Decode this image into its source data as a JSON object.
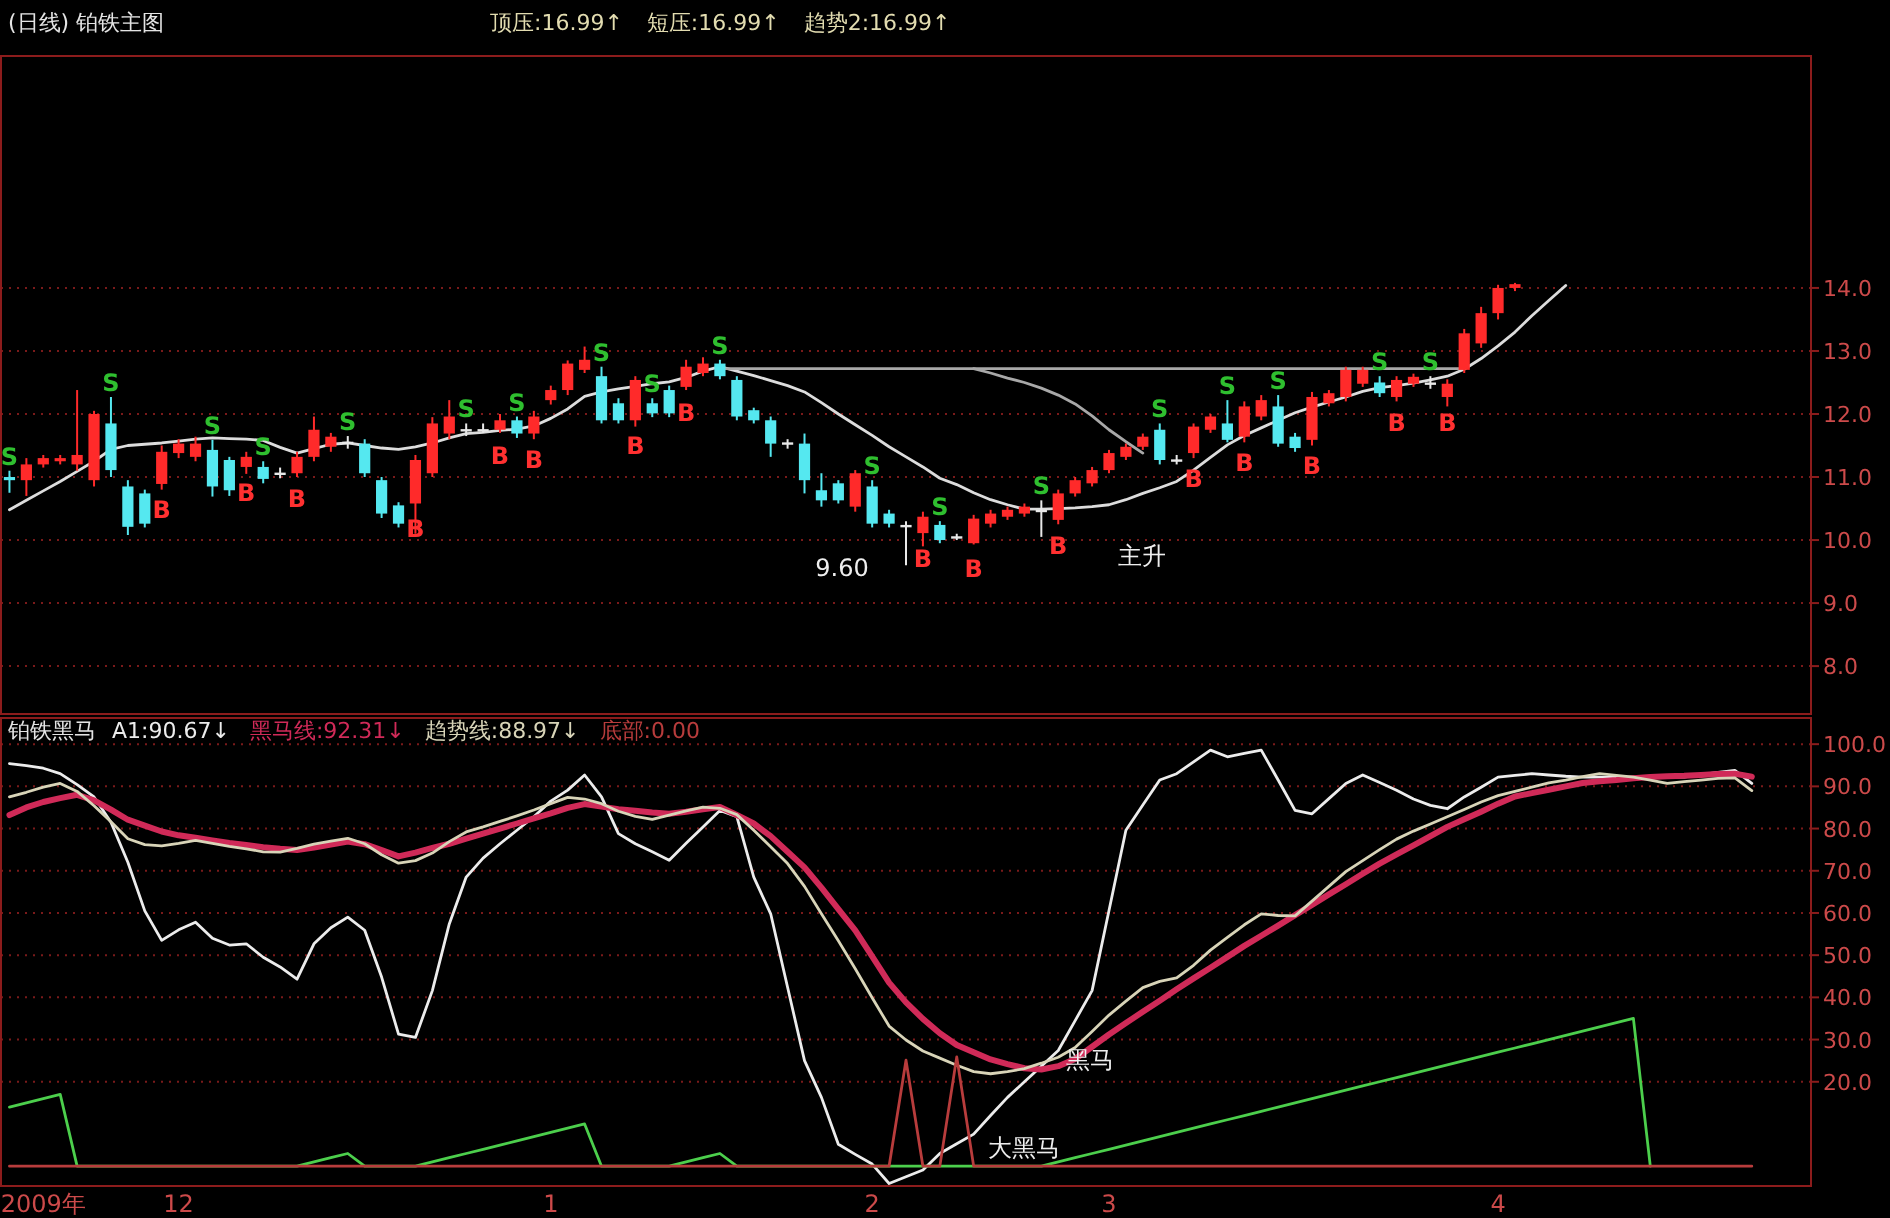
{
  "chart_data": [
    {
      "type": "candlestick",
      "title": "(日线) 铂铁主图",
      "annotations": [
        "顶压:16.99↑",
        "短压:16.99↑",
        "趋势2:16.99↑",
        "9.60",
        "主升"
      ],
      "categories": [
        null,
        null,
        null,
        null,
        null,
        null,
        null,
        null,
        null,
        null,
        null,
        null,
        null,
        null,
        null,
        null,
        null,
        null,
        null,
        null,
        null,
        null,
        null,
        null,
        null,
        null,
        null,
        null,
        null,
        null,
        null,
        null,
        null,
        null,
        null,
        null,
        null,
        null,
        null,
        null,
        null,
        null,
        null,
        null,
        null,
        null,
        null,
        null,
        null,
        null,
        null,
        null,
        null,
        null,
        null,
        null,
        null,
        null,
        null,
        null,
        null,
        null,
        null,
        null,
        null,
        null,
        null,
        null,
        null,
        null,
        null,
        null,
        null,
        null,
        null,
        null,
        null,
        null,
        null,
        null,
        null,
        null,
        null,
        null,
        null,
        null,
        null,
        null,
        null,
        null,
        null,
        null,
        null,
        null,
        null,
        null,
        null,
        null,
        null,
        null,
        null,
        null,
        null,
        null,
        null,
        null,
        null
      ],
      "ohlc": [
        [
          11.0,
          11.1,
          10.75,
          10.95
        ],
        [
          10.95,
          11.3,
          10.7,
          11.2
        ],
        [
          11.2,
          11.35,
          11.15,
          11.3
        ],
        [
          11.25,
          11.35,
          11.2,
          11.3
        ],
        [
          11.2,
          12.38,
          11.1,
          11.35
        ],
        [
          10.95,
          12.05,
          10.85,
          12.0
        ],
        [
          11.85,
          12.27,
          11.0,
          11.11
        ],
        [
          10.85,
          10.95,
          10.08,
          10.21
        ],
        [
          10.74,
          10.8,
          10.2,
          10.26
        ],
        [
          10.89,
          11.5,
          10.8,
          11.4
        ],
        [
          11.38,
          11.6,
          11.3,
          11.53
        ],
        [
          11.32,
          11.64,
          11.25,
          11.53
        ],
        [
          11.43,
          11.59,
          10.69,
          10.85
        ],
        [
          11.27,
          11.32,
          10.7,
          10.79
        ],
        [
          11.16,
          11.4,
          11.05,
          11.32
        ],
        [
          11.16,
          11.25,
          10.9,
          10.97
        ],
        [
          11.07,
          11.15,
          10.98,
          11.05
        ],
        [
          11.06,
          11.4,
          11.0,
          11.32
        ],
        [
          11.32,
          11.96,
          11.25,
          11.75
        ],
        [
          11.48,
          11.7,
          11.4,
          11.64
        ],
        [
          11.56,
          11.65,
          11.45,
          11.54
        ],
        [
          11.53,
          11.6,
          11.0,
          11.06
        ],
        [
          10.95,
          11.0,
          10.35,
          10.42
        ],
        [
          10.55,
          10.6,
          10.2,
          10.26
        ],
        [
          10.58,
          11.35,
          10.1,
          11.27
        ],
        [
          11.06,
          11.95,
          11.0,
          11.85
        ],
        [
          11.69,
          12.22,
          11.6,
          11.96
        ],
        [
          11.76,
          11.85,
          11.65,
          11.74
        ],
        [
          11.76,
          11.85,
          11.7,
          11.74
        ],
        [
          11.75,
          12.0,
          11.7,
          11.9
        ],
        [
          11.9,
          11.96,
          11.62,
          11.69
        ],
        [
          11.69,
          12.05,
          11.6,
          11.96
        ],
        [
          12.22,
          12.45,
          12.15,
          12.38
        ],
        [
          12.38,
          12.85,
          12.3,
          12.8
        ],
        [
          12.7,
          13.07,
          12.65,
          12.86
        ],
        [
          12.6,
          12.75,
          11.85,
          11.9
        ],
        [
          12.17,
          12.25,
          11.85,
          11.9
        ],
        [
          11.9,
          12.6,
          11.8,
          12.54
        ],
        [
          12.17,
          12.25,
          11.95,
          12.01
        ],
        [
          12.38,
          12.45,
          11.95,
          12.01
        ],
        [
          12.43,
          12.86,
          12.38,
          12.75
        ],
        [
          12.65,
          12.9,
          12.6,
          12.8
        ],
        [
          12.8,
          12.86,
          12.55,
          12.6
        ],
        [
          12.54,
          12.6,
          11.9,
          11.96
        ],
        [
          12.06,
          12.1,
          11.85,
          11.9
        ],
        [
          11.9,
          11.96,
          11.32,
          11.53
        ],
        [
          11.55,
          11.6,
          11.45,
          11.53
        ],
        [
          11.53,
          11.69,
          10.74,
          10.95
        ],
        [
          10.79,
          11.06,
          10.53,
          10.63
        ],
        [
          10.9,
          10.95,
          10.58,
          10.63
        ],
        [
          10.53,
          11.11,
          10.45,
          11.06
        ],
        [
          10.85,
          10.95,
          10.2,
          10.26
        ],
        [
          10.42,
          10.48,
          10.2,
          10.26
        ],
        [
          10.24,
          10.3,
          9.6,
          10.22
        ],
        [
          10.11,
          10.45,
          9.9,
          10.37
        ],
        [
          10.24,
          10.3,
          9.95,
          10.0
        ],
        [
          10.06,
          10.1,
          10.0,
          10.04
        ],
        [
          9.95,
          10.4,
          9.93,
          10.34
        ],
        [
          10.26,
          10.48,
          10.2,
          10.42
        ],
        [
          10.37,
          10.53,
          10.32,
          10.48
        ],
        [
          10.42,
          10.58,
          10.37,
          10.53
        ],
        [
          10.48,
          10.63,
          10.05,
          10.46
        ],
        [
          10.32,
          10.8,
          10.25,
          10.74
        ],
        [
          10.74,
          11.0,
          10.69,
          10.95
        ],
        [
          10.9,
          11.16,
          10.85,
          11.11
        ],
        [
          11.11,
          11.43,
          11.06,
          11.38
        ],
        [
          11.32,
          11.53,
          11.27,
          11.48
        ],
        [
          11.48,
          11.69,
          11.43,
          11.64
        ],
        [
          11.75,
          11.85,
          11.2,
          11.27
        ],
        [
          11.28,
          11.35,
          11.2,
          11.26
        ],
        [
          11.38,
          11.85,
          11.3,
          11.8
        ],
        [
          11.75,
          12.0,
          11.7,
          11.96
        ],
        [
          11.85,
          12.22,
          11.55,
          11.59
        ],
        [
          11.64,
          12.2,
          11.55,
          12.12
        ],
        [
          11.96,
          12.3,
          11.9,
          12.22
        ],
        [
          12.12,
          12.3,
          11.48,
          11.53
        ],
        [
          11.64,
          11.7,
          11.4,
          11.46
        ],
        [
          11.59,
          12.35,
          11.5,
          12.27
        ],
        [
          12.17,
          12.38,
          12.12,
          12.33
        ],
        [
          12.27,
          12.75,
          12.2,
          12.7
        ],
        [
          12.48,
          12.75,
          12.43,
          12.7
        ],
        [
          12.5,
          12.6,
          12.27,
          12.33
        ],
        [
          12.27,
          12.6,
          12.2,
          12.54
        ],
        [
          12.48,
          12.64,
          12.43,
          12.59
        ],
        [
          12.5,
          12.6,
          12.4,
          12.48
        ],
        [
          12.27,
          12.55,
          12.12,
          12.48
        ],
        [
          12.7,
          13.35,
          12.65,
          13.28
        ],
        [
          13.12,
          13.7,
          13.05,
          13.6
        ],
        [
          13.6,
          14.05,
          13.5,
          14.0
        ],
        [
          14.0,
          14.08,
          13.95,
          14.06
        ],
        null,
        null,
        null,
        null,
        null,
        null,
        null,
        null,
        null,
        null,
        null,
        null,
        null,
        null,
        null,
        null,
        null
      ],
      "colors": [
        "#55e8f0",
        "#ff2a2a",
        "#ff2a2a",
        "#ff2a2a",
        "#ff2a2a",
        "#ff2a2a",
        "#55e8f0",
        "#55e8f0",
        "#55e8f0",
        "#ff2a2a",
        "#ff2a2a",
        "#ff2a2a",
        "#55e8f0",
        "#55e8f0",
        "#ff2a2a",
        "#55e8f0",
        "#e8e8e8",
        "#ff2a2a",
        "#ff2a2a",
        "#ff2a2a",
        "#e8e8e8",
        "#55e8f0",
        "#55e8f0",
        "#55e8f0",
        "#ff2a2a",
        "#ff2a2a",
        "#ff2a2a",
        "#e8e8e8",
        "#e8e8e8",
        "#ff2a2a",
        "#55e8f0",
        "#ff2a2a",
        "#ff2a2a",
        "#ff2a2a",
        "#ff2a2a",
        "#55e8f0",
        "#55e8f0",
        "#ff2a2a",
        "#55e8f0",
        "#55e8f0",
        "#ff2a2a",
        "#ff2a2a",
        "#55e8f0",
        "#55e8f0",
        "#55e8f0",
        "#55e8f0",
        "#e8e8e8",
        "#55e8f0",
        "#55e8f0",
        "#55e8f0",
        "#ff2a2a",
        "#55e8f0",
        "#55e8f0",
        "#e8e8e8",
        "#ff2a2a",
        "#55e8f0",
        "#e8e8e8",
        "#ff2a2a",
        "#ff2a2a",
        "#ff2a2a",
        "#ff2a2a",
        "#e8e8e8",
        "#ff2a2a",
        "#ff2a2a",
        "#ff2a2a",
        "#ff2a2a",
        "#ff2a2a",
        "#ff2a2a",
        "#55e8f0",
        "#e8e8e8",
        "#ff2a2a",
        "#ff2a2a",
        "#55e8f0",
        "#ff2a2a",
        "#ff2a2a",
        "#55e8f0",
        "#55e8f0",
        "#ff2a2a",
        "#ff2a2a",
        "#ff2a2a",
        "#ff2a2a",
        "#55e8f0",
        "#ff2a2a",
        "#ff2a2a",
        "#e8e8e8",
        "#ff2a2a",
        "#ff2a2a",
        "#ff2a2a",
        "#ff2a2a",
        "#ff2a2a",
        null,
        null,
        null,
        null,
        null,
        null,
        null,
        null,
        null,
        null,
        null,
        null,
        null,
        null,
        null,
        null,
        null
      ],
      "value_labels": [
        "S",
        null,
        null,
        null,
        null,
        null,
        "S",
        null,
        null,
        "B",
        null,
        null,
        "S",
        null,
        "B",
        "S",
        null,
        "B",
        null,
        null,
        "S",
        null,
        null,
        null,
        "B",
        null,
        null,
        "S",
        null,
        "B",
        "S",
        "B",
        null,
        null,
        null,
        "S",
        null,
        "B",
        "S",
        null,
        "B",
        null,
        "S",
        null,
        null,
        null,
        null,
        null,
        null,
        null,
        null,
        "S",
        null,
        null,
        "B",
        "S",
        null,
        "B",
        null,
        null,
        null,
        "S",
        "B",
        null,
        null,
        null,
        null,
        null,
        "S",
        null,
        "B",
        null,
        "S",
        "B",
        null,
        "S",
        null,
        "B",
        null,
        null,
        null,
        "S",
        "B",
        null,
        "S",
        "B",
        null,
        null,
        null,
        null,
        null,
        null,
        null,
        null,
        null,
        null,
        null,
        null,
        null,
        null,
        null,
        null,
        null,
        null,
        null,
        null,
        null
      ],
      "series": [
        {
          "type": "line",
          "color": "#dcdcdc",
          "values": [
            10.48,
            10.63,
            10.78,
            10.93,
            11.09,
            11.25,
            11.44,
            11.5,
            11.52,
            11.54,
            11.57,
            11.6,
            11.62,
            11.61,
            11.6,
            11.58,
            11.47,
            11.38,
            11.45,
            11.52,
            11.54,
            11.5,
            11.46,
            11.44,
            11.48,
            11.54,
            11.62,
            11.69,
            11.71,
            11.74,
            11.76,
            11.81,
            11.93,
            12.08,
            12.28,
            12.35,
            12.4,
            12.44,
            12.48,
            12.51,
            12.58,
            12.68,
            12.75,
            12.68,
            12.61,
            12.53,
            12.45,
            12.35,
            12.18,
            12.0,
            11.83,
            11.66,
            11.48,
            11.32,
            11.16,
            10.98,
            10.88,
            10.75,
            10.64,
            10.56,
            10.49,
            10.49,
            10.5,
            10.51,
            10.53,
            10.56,
            10.64,
            10.74,
            10.83,
            10.93,
            11.11,
            11.31,
            11.51,
            11.66,
            11.78,
            11.9,
            12.02,
            12.11,
            12.19,
            12.27,
            12.36,
            12.42,
            12.45,
            12.49,
            12.54,
            12.6,
            12.71,
            12.88,
            13.08,
            13.3,
            13.56,
            13.8,
            14.04,
            null,
            null,
            null,
            null,
            null,
            null,
            null,
            null,
            null,
            null,
            null,
            null,
            null,
            null
          ]
        },
        {
          "type": "line",
          "color": "#a8a8a8",
          "values": [
            null,
            null,
            null,
            null,
            null,
            null,
            null,
            null,
            null,
            null,
            null,
            null,
            null,
            null,
            null,
            null,
            null,
            null,
            null,
            null,
            null,
            null,
            null,
            null,
            null,
            null,
            null,
            null,
            null,
            null,
            null,
            null,
            null,
            null,
            null,
            null,
            null,
            null,
            null,
            null,
            null,
            null,
            12.72,
            12.72,
            12.72,
            12.72,
            12.72,
            12.72,
            12.72,
            12.72,
            12.72,
            12.72,
            12.72,
            12.72,
            12.72,
            12.72,
            12.72,
            12.72,
            12.72,
            12.72,
            12.72,
            12.72,
            12.72,
            12.72,
            12.72,
            12.72,
            12.72,
            12.72,
            12.72,
            12.72,
            12.72,
            12.72,
            12.72,
            12.72,
            12.72,
            12.72,
            12.72,
            12.72,
            12.72,
            12.72,
            12.72,
            12.72,
            12.72,
            12.72,
            12.72,
            12.72,
            12.72,
            null,
            null,
            null,
            null,
            null,
            null,
            null,
            null,
            null,
            null,
            null,
            null,
            null,
            null,
            null,
            null,
            null,
            null,
            null,
            null
          ]
        },
        {
          "type": "line",
          "color": "#a8a8a8",
          "values": [
            null,
            null,
            null,
            null,
            null,
            null,
            null,
            null,
            null,
            null,
            null,
            null,
            null,
            null,
            null,
            null,
            null,
            null,
            null,
            null,
            null,
            null,
            null,
            null,
            null,
            null,
            null,
            null,
            null,
            null,
            null,
            null,
            null,
            null,
            null,
            null,
            null,
            null,
            null,
            null,
            null,
            null,
            null,
            null,
            null,
            null,
            null,
            null,
            null,
            null,
            null,
            null,
            null,
            null,
            null,
            null,
            null,
            12.72,
            12.65,
            12.57,
            12.5,
            12.41,
            12.3,
            12.16,
            11.97,
            11.75,
            11.56,
            11.38,
            null,
            null,
            null,
            null,
            null,
            null,
            null,
            null,
            null,
            null,
            null,
            null,
            null,
            null,
            null,
            null,
            null,
            null,
            null,
            null,
            null,
            null,
            null,
            null,
            null,
            null,
            null,
            null,
            null,
            null,
            null,
            null,
            null,
            null,
            null,
            null,
            null,
            null,
            null
          ]
        }
      ],
      "ylim": [
        7.24,
        17.68
      ],
      "yticks": [
        {
          "value": 8,
          "label": "8.0"
        },
        {
          "value": 9,
          "label": "9.0"
        },
        {
          "value": 10,
          "label": "10.0"
        },
        {
          "value": 11,
          "label": "11.0"
        },
        {
          "value": 12,
          "label": "12.0"
        },
        {
          "value": 13,
          "label": "13.0"
        },
        {
          "value": 14,
          "label": "14.0"
        }
      ],
      "grid": "y"
    },
    {
      "type": "line",
      "title": "铂铁黑马",
      "legend": "top left",
      "annotations": [
        "黑马",
        "大黑马"
      ],
      "categories": [
        null,
        null,
        "2009年",
        null,
        null,
        null,
        null,
        null,
        null,
        null,
        "12",
        null,
        null,
        null,
        null,
        null,
        null,
        null,
        null,
        null,
        null,
        null,
        null,
        null,
        null,
        null,
        null,
        null,
        null,
        null,
        null,
        null,
        "1",
        null,
        null,
        null,
        null,
        null,
        null,
        null,
        null,
        null,
        null,
        null,
        null,
        null,
        null,
        null,
        null,
        null,
        null,
        "2",
        null,
        null,
        null,
        null,
        null,
        null,
        null,
        null,
        null,
        null,
        null,
        null,
        null,
        "3",
        null,
        null,
        null,
        null,
        null,
        null,
        null,
        null,
        null,
        null,
        null,
        null,
        null,
        null,
        null,
        null,
        null,
        null,
        null,
        null,
        null,
        null,
        "4",
        null,
        null,
        null,
        null,
        null,
        null,
        null,
        null,
        null,
        null,
        null,
        null,
        null,
        null,
        null,
        null,
        null,
        null
      ],
      "series": [
        {
          "name": "A1:90.67↓",
          "color": "#ececec",
          "values": [
            95.4,
            94.9,
            94.3,
            93.0,
            90.4,
            87.5,
            81.5,
            72.0,
            60.5,
            53.5,
            56.0,
            57.8,
            54.0,
            52.4,
            52.7,
            49.5,
            47.2,
            44.3,
            52.7,
            56.5,
            59.0,
            55.9,
            44.8,
            31.3,
            30.5,
            41.6,
            57.4,
            68.5,
            73.0,
            76.4,
            79.6,
            82.8,
            86.5,
            89.1,
            92.7,
            87.5,
            78.8,
            76.4,
            74.5,
            72.5,
            76.5,
            80.4,
            84.3,
            82.8,
            68.5,
            59.8,
            42.4,
            25.0,
            16.3,
            5.2,
            2.8,
            0.5,
            -4.1,
            -2.5,
            -0.9,
            3.0,
            5.3,
            7.6,
            12.0,
            16.3,
            20.0,
            23.7,
            27.4,
            34.5,
            41.6,
            60.6,
            79.6,
            85.6,
            91.5,
            93.0,
            95.8,
            98.6,
            97.0,
            97.8,
            98.6,
            91.5,
            84.3,
            83.5,
            87.1,
            90.7,
            92.7,
            90.9,
            89.1,
            87.0,
            85.5,
            84.7,
            87.5,
            89.8,
            92.2,
            92.6,
            93.0,
            92.7,
            92.4,
            92.2,
            92.2,
            92.2,
            92.2,
            92.2,
            92.2,
            92.2,
            92.8,
            93.3,
            93.8,
            90.7,
            null,
            null,
            null
          ]
        },
        {
          "name": "黑马线:92.31↓",
          "color": "#d02a58",
          "values": [
            83.2,
            85.0,
            86.3,
            87.2,
            88.0,
            86.7,
            84.5,
            82.1,
            80.7,
            79.3,
            78.4,
            77.8,
            77.2,
            76.6,
            76.1,
            75.6,
            75.2,
            74.9,
            75.5,
            76.2,
            76.9,
            76.3,
            74.9,
            73.4,
            74.3,
            75.4,
            76.4,
            77.6,
            78.8,
            80.0,
            81.2,
            82.4,
            83.6,
            84.9,
            85.8,
            85.2,
            84.6,
            84.2,
            83.8,
            83.5,
            84.0,
            84.6,
            85.1,
            83.2,
            81.2,
            78.2,
            74.5,
            70.8,
            66.0,
            60.9,
            55.9,
            49.7,
            43.5,
            38.8,
            34.9,
            31.5,
            28.7,
            27.0,
            25.3,
            24.2,
            23.2,
            22.9,
            23.7,
            25.4,
            28.3,
            31.2,
            33.9,
            36.6,
            39.2,
            41.9,
            44.5,
            47.0,
            49.6,
            52.2,
            54.6,
            57.0,
            59.5,
            61.9,
            64.4,
            66.8,
            69.3,
            71.7,
            73.9,
            76.0,
            78.2,
            80.4,
            82.2,
            84.0,
            85.9,
            87.6,
            88.4,
            89.2,
            90.0,
            90.8,
            91.2,
            91.5,
            91.9,
            92.2,
            92.4,
            92.5,
            92.7,
            92.9,
            93.0,
            92.3,
            null,
            null,
            null
          ]
        },
        {
          "name": "趋势线:88.97↓",
          "color": "#d8d4b8",
          "values": [
            87.5,
            88.6,
            89.8,
            90.7,
            88.8,
            85.4,
            81.6,
            77.6,
            76.2,
            75.9,
            76.5,
            77.2,
            76.5,
            75.8,
            75.2,
            74.5,
            74.4,
            75.3,
            76.3,
            77.0,
            77.7,
            76.4,
            73.8,
            71.8,
            72.4,
            74.2,
            76.9,
            79.2,
            80.4,
            81.7,
            83.0,
            84.4,
            85.9,
            87.4,
            87.0,
            85.9,
            84.1,
            82.9,
            82.2,
            83.2,
            84.2,
            85.1,
            84.8,
            83.3,
            79.6,
            75.7,
            71.7,
            66.3,
            59.8,
            53.4,
            46.8,
            39.9,
            33.2,
            29.9,
            27.3,
            25.6,
            23.9,
            22.4,
            21.9,
            22.4,
            23.1,
            24.4,
            25.8,
            28.1,
            31.9,
            35.8,
            39.1,
            42.3,
            43.8,
            44.6,
            47.6,
            51.2,
            54.2,
            57.2,
            59.8,
            59.4,
            59.3,
            62.8,
            66.3,
            69.8,
            72.4,
            75.0,
            77.5,
            79.4,
            81.1,
            82.8,
            84.5,
            86.3,
            87.8,
            88.8,
            89.8,
            90.8,
            91.5,
            92.3,
            93.0,
            92.6,
            92.2,
            91.5,
            90.7,
            91.1,
            91.5,
            91.9,
            92.0,
            89.0,
            null,
            null,
            null
          ]
        },
        {
          "color": "#4ccf4c",
          "values": [
            14,
            15,
            16,
            17,
            0,
            0,
            0,
            0,
            0,
            0,
            0,
            0,
            0,
            0,
            0,
            0,
            0,
            0,
            1,
            2,
            3,
            0,
            0,
            0,
            0,
            1,
            2,
            3,
            4,
            5,
            6,
            7,
            8,
            9,
            10,
            0,
            0,
            0,
            0,
            0,
            1,
            2,
            3,
            0,
            0,
            0,
            0,
            0,
            0,
            0,
            0,
            0,
            0,
            0,
            0,
            0,
            0,
            0,
            0,
            0,
            0,
            0,
            1,
            2,
            3,
            4,
            5,
            6,
            7,
            8,
            9,
            10,
            11,
            12,
            13,
            14,
            15,
            16,
            17,
            18,
            19,
            20,
            21,
            22,
            23,
            24,
            25,
            26,
            27,
            28,
            29,
            30,
            31,
            32,
            33,
            34,
            35,
            0,
            null,
            null,
            null,
            null,
            null,
            null,
            null,
            null,
            null
          ]
        },
        {
          "name": "底部:0.00",
          "color": "#b83c3c",
          "values": [
            0,
            0,
            0,
            0,
            0,
            0,
            0,
            0,
            0,
            0,
            0,
            0,
            0,
            0,
            0,
            0,
            0,
            0,
            0,
            0,
            0,
            0,
            0,
            0,
            0,
            0,
            0,
            0,
            0,
            0,
            0,
            0,
            0,
            0,
            0,
            0,
            0,
            0,
            0,
            0,
            0,
            0,
            0,
            0,
            0,
            0,
            0,
            0,
            0,
            0,
            0,
            0,
            0,
            25.1,
            0,
            0,
            25.9,
            0,
            0,
            0,
            0,
            0,
            0,
            0,
            0,
            0,
            0,
            0,
            0,
            0,
            0,
            0,
            0,
            0,
            0,
            0,
            0,
            0,
            0,
            0,
            0,
            0,
            0,
            0,
            0,
            0,
            0,
            0,
            0,
            0,
            0,
            0,
            0,
            0,
            0,
            0,
            0,
            0,
            0,
            0,
            0,
            0,
            0,
            0,
            null,
            null,
            null
          ]
        }
      ],
      "ylim": [
        -4.7,
        106.2
      ],
      "yticks": [
        {
          "value": 20,
          "label": "20.0"
        },
        {
          "value": 30,
          "label": "30.0"
        },
        {
          "value": 40,
          "label": "40.0"
        },
        {
          "value": 50,
          "label": "50.0"
        },
        {
          "value": 60,
          "label": "60.0"
        },
        {
          "value": 70,
          "label": "70.0"
        },
        {
          "value": 80,
          "label": "80.0"
        },
        {
          "value": 90,
          "label": "90.0"
        },
        {
          "value": 100,
          "label": "100.0"
        }
      ],
      "grid": "y"
    }
  ]
}
